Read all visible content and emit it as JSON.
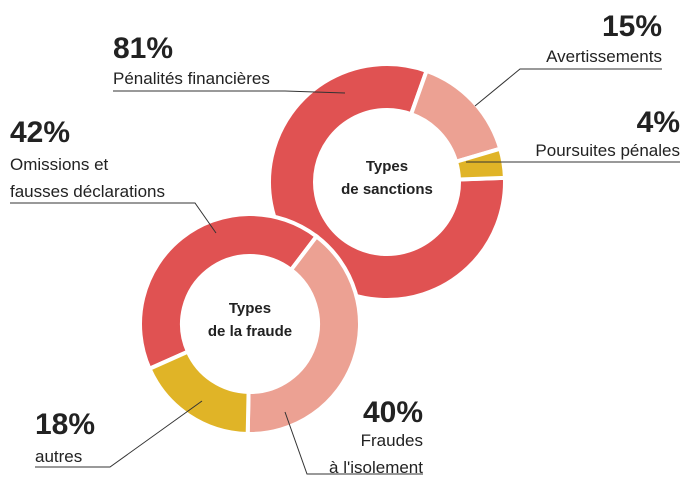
{
  "chart_data": [
    {
      "type": "donut",
      "title_lines": [
        "Types",
        "de sanctions"
      ],
      "categories": [
        [
          "Pénalités financières"
        ],
        [
          "Avertissements"
        ],
        [
          "Poursuites pénales"
        ]
      ],
      "values": [
        81,
        15,
        4
      ],
      "value_labels": [
        "81%",
        "15%",
        "4%"
      ],
      "colors": [
        "#e05252",
        "#eca193",
        "#e0b427"
      ]
    },
    {
      "type": "donut",
      "title_lines": [
        "Types",
        "de la fraude"
      ],
      "categories": [
        [
          "Omissions et",
          "fausses déclarations"
        ],
        [
          "Fraudes",
          "à l'isolement"
        ],
        [
          "autres"
        ]
      ],
      "values": [
        42,
        40,
        18
      ],
      "value_labels": [
        "42%",
        "40%",
        "18%"
      ],
      "colors": [
        "#e05252",
        "#eca193",
        "#e0b427"
      ]
    }
  ]
}
